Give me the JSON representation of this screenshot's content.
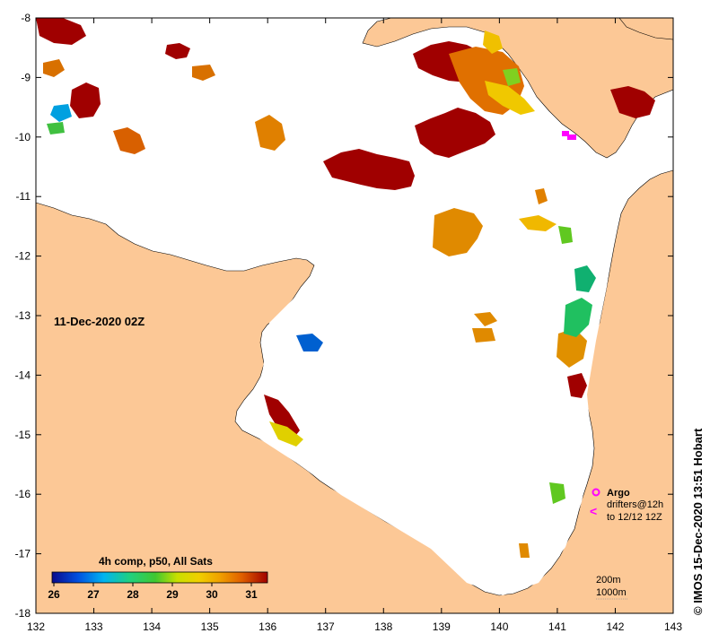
{
  "map": {
    "date": "11-Dec-2020 02Z",
    "credit": "© IMOS 15-Dec-2020 13:51 Hobart",
    "lon_ticks": [
      "132",
      "133",
      "134",
      "135",
      "136",
      "137",
      "138",
      "139",
      "140",
      "141",
      "142",
      "143"
    ],
    "lat_ticks": [
      "-8",
      "-9",
      "-10",
      "-11",
      "-12",
      "-13",
      "-14",
      "-15",
      "-16",
      "-17",
      "-18"
    ],
    "colors": {
      "land": "#fcc896",
      "sea": "#ffffff",
      "frame": "#000000",
      "argo": "#ff00ff"
    }
  },
  "legend": {
    "title": "4h comp, p50, All Sats",
    "ticks": [
      "26",
      "27",
      "28",
      "29",
      "30",
      "31"
    ]
  },
  "markers": {
    "argo_label": "Argo",
    "drifters_line1": "drifters@12h",
    "drifters_line2": "to 12/12 12Z",
    "drifter_symbol": "<"
  },
  "contours": {
    "label_200m": "200m",
    "label_1000m": "1000m"
  }
}
